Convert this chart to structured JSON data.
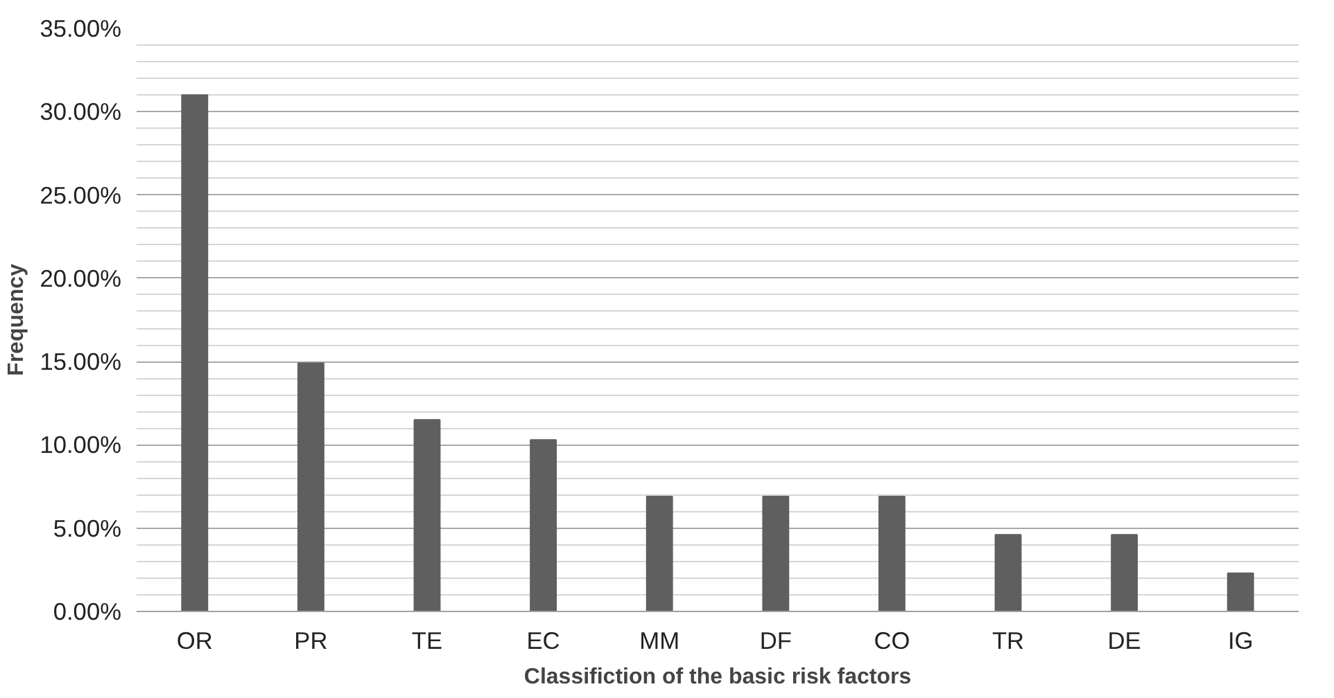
{
  "chart_data": {
    "type": "bar",
    "xlabel": "Classifiction of the basic risk factors",
    "ylabel": "Frequency",
    "categories": [
      "OR",
      "PR",
      "TE",
      "EC",
      "MM",
      "DF",
      "CO",
      "TR",
      "DE",
      "IG"
    ],
    "values": [
      31.0,
      14.9,
      11.5,
      10.3,
      6.9,
      6.9,
      6.9,
      4.6,
      4.6,
      2.3
    ],
    "color": "#5f5f5f",
    "ylim": [
      0,
      35
    ],
    "yticks": [
      {
        "value": 0,
        "label": "0.00%"
      },
      {
        "value": 5,
        "label": "5.00%"
      },
      {
        "value": 10,
        "label": "10.00%"
      },
      {
        "value": 15,
        "label": "15.00%"
      },
      {
        "value": 20,
        "label": "20.00%"
      },
      {
        "value": 25,
        "label": "25.00%"
      },
      {
        "value": 30,
        "label": "30.00%"
      },
      {
        "value": 35,
        "label": "35.00%"
      }
    ],
    "grid": "y"
  }
}
